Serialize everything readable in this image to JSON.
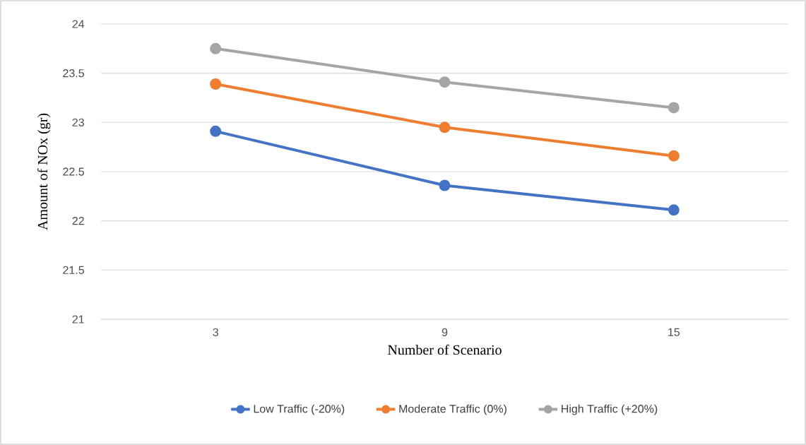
{
  "chart_data": {
    "type": "line",
    "xlabel": "Number of Scenario",
    "ylabel": "Amount of NOx (gr)",
    "categories": [
      "3",
      "9",
      "15"
    ],
    "series": [
      {
        "name": "Low Traffic (-20%)",
        "color": "#4472c4",
        "values": [
          22.91,
          22.36,
          22.11
        ]
      },
      {
        "name": "Moderate Traffic (0%)",
        "color": "#ed7d31",
        "values": [
          23.39,
          22.95,
          22.66
        ]
      },
      {
        "name": "High Traffic (+20%)",
        "color": "#a5a5a5",
        "values": [
          23.75,
          23.41,
          23.15
        ]
      }
    ],
    "ylim": [
      21,
      24
    ],
    "yticks": [
      21,
      21.5,
      22,
      22.5,
      23,
      23.5,
      24
    ],
    "grid": "y",
    "legend": "bottom",
    "marker": "circle",
    "line_style": "solid"
  }
}
